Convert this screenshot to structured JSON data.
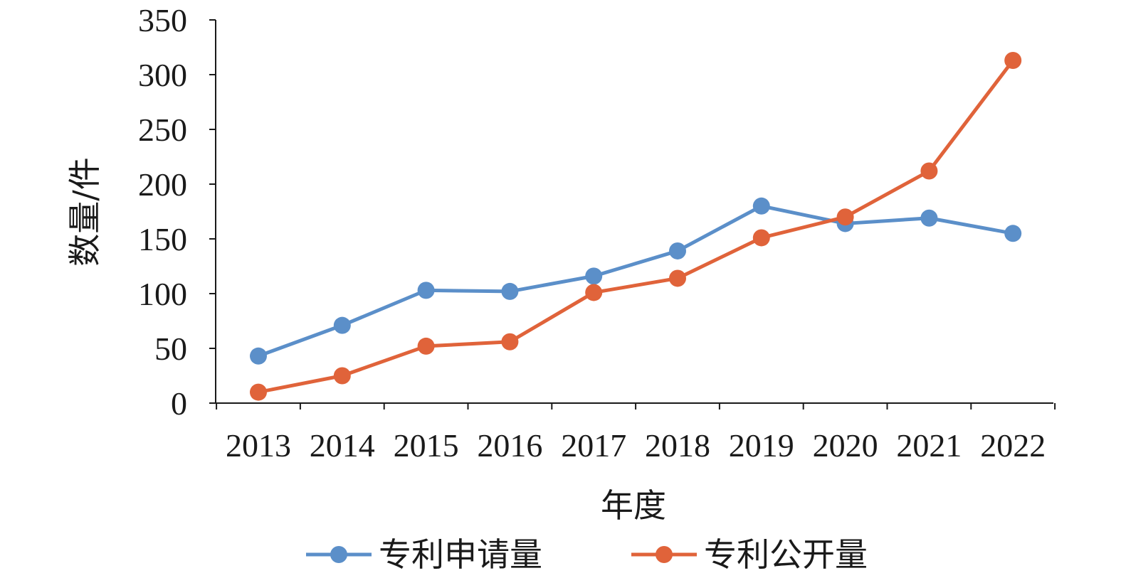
{
  "chart_data": {
    "type": "line",
    "title": "",
    "xlabel": "年度",
    "ylabel": "数量/件",
    "categories": [
      "2013",
      "2014",
      "2015",
      "2016",
      "2017",
      "2018",
      "2019",
      "2020",
      "2021",
      "2022"
    ],
    "ylim": [
      0,
      350
    ],
    "yticks": [
      0,
      50,
      100,
      150,
      200,
      250,
      300,
      350
    ],
    "grid": false,
    "legend_position": "bottom",
    "series": [
      {
        "name": "专利申请量",
        "color": "#5b8fc9",
        "values": [
          43,
          71,
          103,
          102,
          116,
          139,
          180,
          164,
          169,
          155
        ]
      },
      {
        "name": "专利公开量",
        "color": "#e0633a",
        "values": [
          10,
          25,
          52,
          56,
          101,
          114,
          151,
          170,
          212,
          313
        ]
      }
    ]
  }
}
